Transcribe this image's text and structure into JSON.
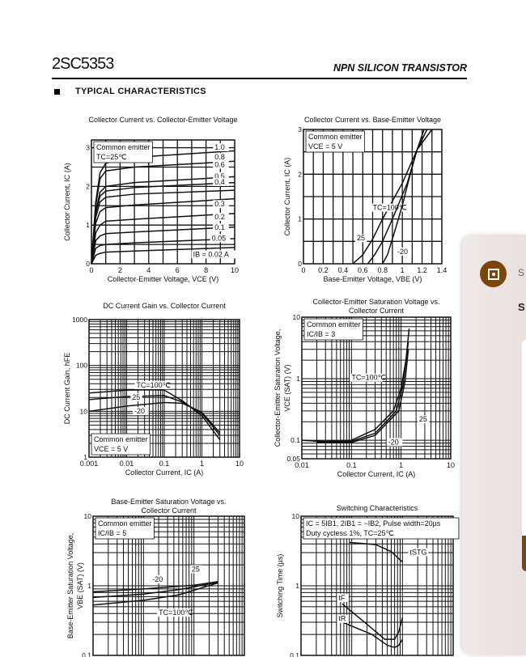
{
  "header": {
    "part_number": "2SC5353",
    "subtitle": "NPN SILICON TRANSISTOR",
    "section": "TYPICAL CHARACTERISTICS"
  },
  "side_panel": {
    "icon": "safe-icon",
    "accent": "#7c4606",
    "line1": "S",
    "line2": "S"
  },
  "chart_data": [
    {
      "type": "line",
      "title": [
        "Collector Current vs. Collector-Emitter Voltage"
      ],
      "xlabel": "Collector-Emitter Voltage, VCE (V)",
      "ylabel": [
        "Collector Current, IC (A)"
      ],
      "xlim": [
        0,
        10
      ],
      "ylim": [
        0,
        3.2
      ],
      "xlog": false,
      "ylog": false,
      "xgrid": 1,
      "ygrid": 0.5,
      "grid": true,
      "xticks": [
        0,
        2,
        4,
        6,
        8,
        10
      ],
      "yticks": [
        0,
        1,
        2,
        3
      ],
      "notes": [
        "Common emitter",
        "TC=25℃"
      ],
      "series": [
        {
          "name": "1.0",
          "points": [
            [
              0,
              0
            ],
            [
              0.3,
              1.6
            ],
            [
              0.6,
              2.35
            ],
            [
              1,
              2.6
            ],
            [
              3,
              2.75
            ],
            [
              10,
              2.92
            ]
          ],
          "label_at": [
            8.6,
            2.95
          ]
        },
        {
          "name": "0.8",
          "points": [
            [
              0,
              0
            ],
            [
              0.3,
              1.5
            ],
            [
              0.6,
              2.2
            ],
            [
              1,
              2.4
            ],
            [
              3,
              2.5
            ],
            [
              10,
              2.65
            ]
          ],
          "label_at": [
            8.6,
            2.7
          ]
        },
        {
          "name": "0.6",
          "points": [
            [
              0,
              0
            ],
            [
              0.3,
              1.35
            ],
            [
              0.6,
              1.85
            ],
            [
              1,
              2.0
            ],
            [
              3,
              2.1
            ],
            [
              10,
              2.25
            ]
          ],
          "label_at": [
            8.6,
            2.5
          ]
        },
        {
          "name": "0.5",
          "points": [
            [
              0,
              0
            ],
            [
              0.3,
              1.3
            ],
            [
              0.6,
              1.75
            ],
            [
              1,
              1.88
            ],
            [
              3,
              1.97
            ],
            [
              10,
              2.1
            ]
          ],
          "label_at": [
            8.6,
            2.2
          ]
        },
        {
          "name": "0.4",
          "points": [
            [
              0,
              0
            ],
            [
              0.3,
              1.2
            ],
            [
              0.6,
              1.6
            ],
            [
              1,
              1.72
            ],
            [
              3,
              1.8
            ],
            [
              10,
              1.9
            ]
          ],
          "label_at": [
            8.6,
            2.05
          ]
        },
        {
          "name": "0.3",
          "points": [
            [
              0,
              0
            ],
            [
              0.3,
              1.05
            ],
            [
              0.6,
              1.35
            ],
            [
              1,
              1.45
            ],
            [
              3,
              1.52
            ],
            [
              10,
              1.68
            ]
          ],
          "label_at": [
            8.6,
            1.48
          ]
        },
        {
          "name": "0.2",
          "points": [
            [
              0,
              0
            ],
            [
              0.3,
              0.8
            ],
            [
              0.6,
              1.0
            ],
            [
              1,
              1.1
            ],
            [
              3,
              1.15
            ],
            [
              10,
              1.3
            ]
          ],
          "label_at": [
            8.6,
            1.15
          ]
        },
        {
          "name": "0.1",
          "points": [
            [
              0,
              0
            ],
            [
              0.3,
              0.6
            ],
            [
              0.6,
              0.72
            ],
            [
              1,
              0.78
            ],
            [
              3,
              0.82
            ],
            [
              10,
              0.95
            ]
          ],
          "label_at": [
            8.6,
            0.88
          ]
        },
        {
          "name": "0.05",
          "points": [
            [
              0,
              0
            ],
            [
              0.3,
              0.4
            ],
            [
              0.6,
              0.47
            ],
            [
              1,
              0.5
            ],
            [
              3,
              0.54
            ],
            [
              10,
              0.65
            ]
          ],
          "label_at": [
            8.4,
            0.6
          ]
        },
        {
          "name": "IB = 0.02 A",
          "points": [
            [
              0,
              0
            ],
            [
              0.3,
              0.22
            ],
            [
              0.6,
              0.27
            ],
            [
              1,
              0.3
            ],
            [
              3,
              0.33
            ],
            [
              10,
              0.42
            ]
          ],
          "label_at": [
            7.1,
            0.18
          ]
        }
      ]
    },
    {
      "type": "line",
      "title": [
        "Collector Current vs. Base-Emitter Voltage"
      ],
      "xlabel": "Base-Emitter Voltage, VBE (V)",
      "ylabel": [
        "Collector Current, IC (A)"
      ],
      "xlim": [
        0,
        1.4
      ],
      "ylim": [
        0,
        3
      ],
      "xlog": false,
      "ylog": false,
      "xgrid": 0.1,
      "ygrid": 0.5,
      "grid": true,
      "xticks": [
        0,
        0.2,
        0.4,
        0.6,
        0.8,
        1.0,
        1.2,
        1.4
      ],
      "yticks": [
        0,
        1,
        2,
        3
      ],
      "notes": [
        "Common emitter",
        "VCE = 5 V"
      ],
      "series": [
        {
          "name": "TC=100℃",
          "points": [
            [
              0.5,
              0
            ],
            [
              0.6,
              0.2
            ],
            [
              0.7,
              0.55
            ],
            [
              0.8,
              1.0
            ],
            [
              1.0,
              1.8
            ],
            [
              1.15,
              2.55
            ],
            [
              1.25,
              3
            ]
          ],
          "label_at": [
            0.7,
            1.2
          ]
        },
        {
          "name": "25",
          "points": [
            [
              0.65,
              0
            ],
            [
              0.72,
              0.2
            ],
            [
              0.8,
              0.5
            ],
            [
              0.9,
              1.0
            ],
            [
              1.05,
              1.8
            ],
            [
              1.15,
              2.55
            ],
            [
              1.3,
              3
            ]
          ],
          "label_at": [
            0.54,
            0.52
          ]
        },
        {
          "name": "-20",
          "points": [
            [
              0.8,
              0
            ],
            [
              0.85,
              0.2
            ],
            [
              0.92,
              0.7
            ],
            [
              1.0,
              1.3
            ],
            [
              1.08,
              2.0
            ],
            [
              1.15,
              2.55
            ],
            [
              1.22,
              3
            ]
          ],
          "label_at": [
            0.95,
            0.22
          ]
        }
      ]
    },
    {
      "type": "line",
      "title": [
        "DC Current Gain vs.  Collector Current"
      ],
      "xlabel": "Collector Current, IC (A)",
      "ylabel": [
        "DC Current Gain, hFE"
      ],
      "xlim": [
        0.001,
        10
      ],
      "ylim": [
        1,
        1000
      ],
      "xlog": true,
      "ylog": true,
      "grid": true,
      "xticks": [
        0.001,
        0.01,
        0.1,
        1,
        10
      ],
      "yticks": [
        1,
        10,
        100,
        1000
      ],
      "notes": [
        "Common emitter",
        "VCE = 5 V"
      ],
      "notes_corner": "bottom-left",
      "series": [
        {
          "name": "TC=100℃",
          "points": [
            [
              0.001,
              25
            ],
            [
              0.01,
              29
            ],
            [
              0.05,
              29.5
            ],
            [
              0.1,
              29
            ],
            [
              0.3,
              17
            ],
            [
              1,
              8
            ],
            [
              3,
              2.4
            ]
          ],
          "label_at": [
            0.018,
            33
          ]
        },
        {
          "name": "25",
          "points": [
            [
              0.001,
              18
            ],
            [
              0.01,
              21
            ],
            [
              0.1,
              22
            ],
            [
              0.3,
              16
            ],
            [
              1,
              9
            ],
            [
              3,
              3
            ]
          ],
          "label_at": [
            0.014,
            18
          ]
        },
        {
          "name": "-20",
          "points": [
            [
              0.001,
              10
            ],
            [
              0.01,
              13
            ],
            [
              0.1,
              15.5
            ],
            [
              0.3,
              15
            ],
            [
              1,
              9.5
            ],
            [
              3,
              3.4
            ]
          ],
          "label_at": [
            0.016,
            9
          ]
        }
      ]
    },
    {
      "type": "line",
      "title": [
        "Collector-Emitter Saturation Voltage vs.",
        "Collector Current"
      ],
      "xlabel": "Collector Current, IC (A)",
      "ylabel": [
        "Collector-Emitter Saturation Voltage,",
        "VCE (SAT) (V)"
      ],
      "xlim": [
        0.01,
        10
      ],
      "ylim": [
        0.05,
        10
      ],
      "xlog": true,
      "ylog": true,
      "grid": true,
      "xticks": [
        0.01,
        0.1,
        1,
        10
      ],
      "yticks": [
        0.05,
        0.1,
        1,
        10
      ],
      "notes": [
        "Common emitter",
        "IC/IB = 3"
      ],
      "series": [
        {
          "name": "TC=100℃",
          "points": [
            [
              0.01,
              0.1
            ],
            [
              0.03,
              0.096
            ],
            [
              0.1,
              0.1
            ],
            [
              0.3,
              0.15
            ],
            [
              0.7,
              0.3
            ],
            [
              1,
              0.7
            ],
            [
              1.25,
              2
            ],
            [
              1.45,
              6.5
            ]
          ],
          "label_at": [
            0.1,
            0.95
          ]
        },
        {
          "name": "25",
          "points": [
            [
              0.01,
              0.1
            ],
            [
              0.03,
              0.094
            ],
            [
              0.1,
              0.096
            ],
            [
              0.3,
              0.13
            ],
            [
              0.8,
              0.3
            ],
            [
              1.1,
              0.8
            ],
            [
              1.4,
              4
            ]
          ],
          "label_at": [
            2.3,
            0.2
          ]
        },
        {
          "name": "-20",
          "points": [
            [
              0.02,
              0.093
            ],
            [
              0.1,
              0.092
            ],
            [
              0.3,
              0.12
            ],
            [
              0.9,
              0.3
            ],
            [
              1.2,
              0.9
            ],
            [
              1.4,
              3
            ]
          ],
          "label_at": [
            0.55,
            0.085
          ]
        }
      ]
    },
    {
      "type": "line",
      "title": [
        "Base-Emitter Saturation Voltage vs.",
        "Collector Current"
      ],
      "xlabel": "",
      "ylabel": [
        "Base-Emitter Saturation Voltage,",
        "VBE (SAT) (V)"
      ],
      "xlim": [
        0.01,
        10
      ],
      "ylim": [
        0.1,
        10
      ],
      "xlog": true,
      "ylog": true,
      "grid": true,
      "xticks": [],
      "yticks": [
        0.1,
        1,
        10
      ],
      "notes": [
        "Common emitter",
        "IC/IB = 5"
      ],
      "series": [
        {
          "name": "-20",
          "points": [
            [
              0.01,
              0.82
            ],
            [
              0.1,
              0.9
            ],
            [
              1,
              1.02
            ],
            [
              3,
              1.15
            ]
          ],
          "label_at": [
            0.15,
            1.15
          ]
        },
        {
          "name": "25",
          "points": [
            [
              0.01,
              0.68
            ],
            [
              0.1,
              0.76
            ],
            [
              0.5,
              0.88
            ],
            [
              3,
              1.12
            ]
          ],
          "label_at": [
            0.9,
            1.6
          ]
        },
        {
          "name": "TC=100℃",
          "points": [
            [
              0.01,
              0.53
            ],
            [
              0.1,
              0.62
            ],
            [
              0.5,
              0.74
            ],
            [
              3,
              1.1
            ]
          ],
          "label_at": [
            0.2,
            0.38
          ]
        }
      ]
    },
    {
      "type": "line",
      "title": [
        "Switching Characteristics"
      ],
      "xlabel": "",
      "ylabel": [
        "Switching Time (µs)"
      ],
      "xlim": [
        0.01,
        10
      ],
      "ylim": [
        0.1,
        10
      ],
      "xlog": true,
      "ylog": true,
      "grid": true,
      "xticks": [],
      "yticks": [
        0.1,
        1,
        10
      ],
      "notes": [
        "IC = 5IB1, 2IB1 = −IB2, Pulse width=20µs",
        "Duty cycles≤ 1%, TC=25℃"
      ],
      "series": [
        {
          "name": "tSTG",
          "points": [
            [
              0.09,
              4.2
            ],
            [
              0.3,
              3.9
            ],
            [
              0.6,
              3.1
            ],
            [
              1,
              2.2
            ]
          ],
          "label_at": [
            1.4,
            2.8
          ]
        },
        {
          "name": "tF",
          "points": [
            [
              0.065,
              0.55
            ],
            [
              0.2,
              0.28
            ],
            [
              0.45,
              0.17
            ],
            [
              0.7,
              0.17
            ],
            [
              0.85,
              0.22
            ],
            [
              1,
              0.35
            ]
          ],
          "label_at": [
            0.055,
            0.62
          ]
        },
        {
          "name": "tR",
          "points": [
            [
              0.065,
              0.3
            ],
            [
              0.25,
              0.2
            ],
            [
              0.5,
              0.14
            ],
            [
              0.7,
              0.13
            ],
            [
              0.85,
              0.14
            ],
            [
              1,
              0.17
            ]
          ],
          "label_at": [
            0.055,
            0.31
          ]
        }
      ]
    }
  ]
}
